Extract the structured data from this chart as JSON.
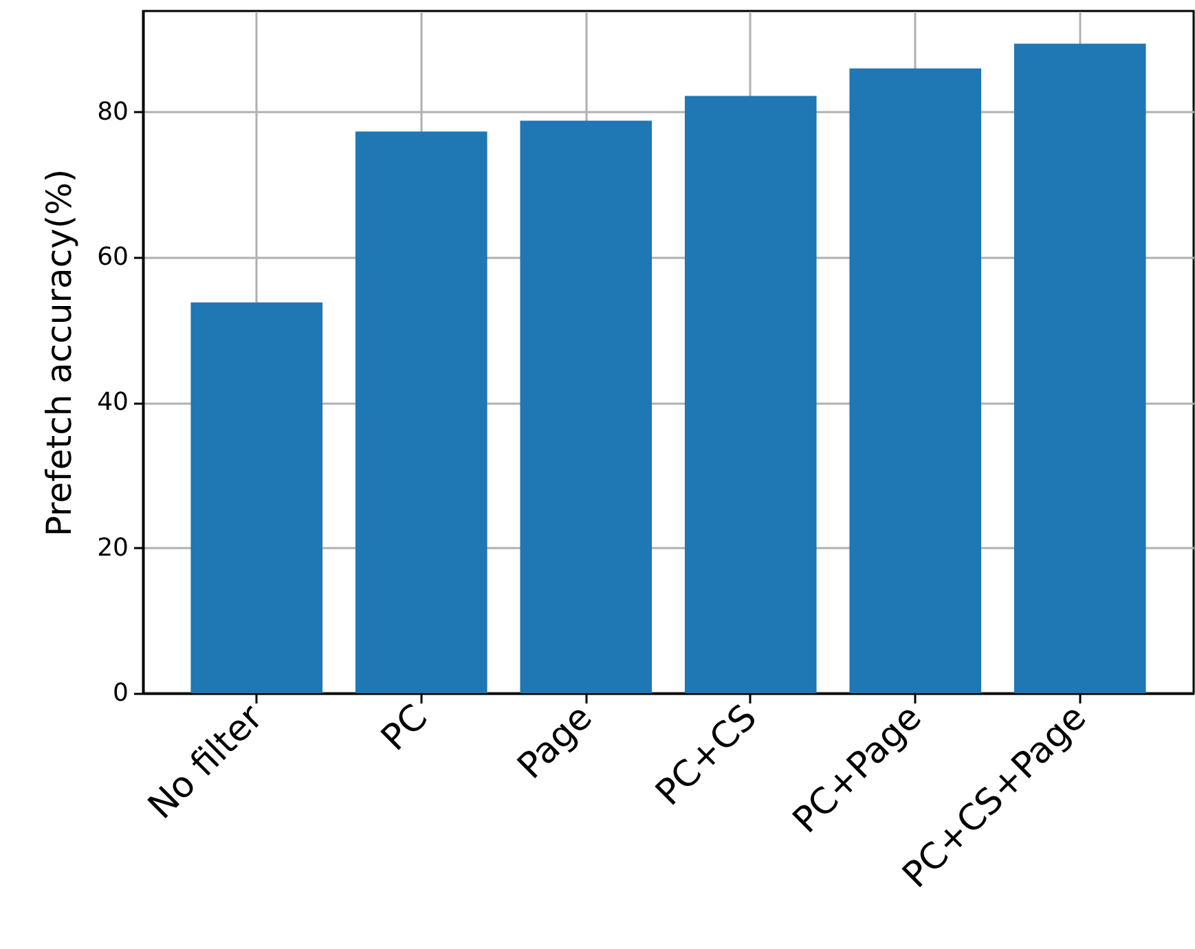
{
  "chart_data": {
    "type": "bar",
    "categories": [
      "No filter",
      "PC",
      "Page",
      "PC+CS",
      "PC+Page",
      "PC+CS+Page"
    ],
    "values": [
      53.8,
      77.3,
      78.8,
      82.2,
      86.0,
      89.4
    ],
    "color": "#1f77b4",
    "ylabel": "Prefetch accuracy(%)",
    "ylim": [
      0,
      93.9
    ],
    "yticks": [
      0,
      20,
      40,
      60,
      80
    ],
    "grid": true
  }
}
